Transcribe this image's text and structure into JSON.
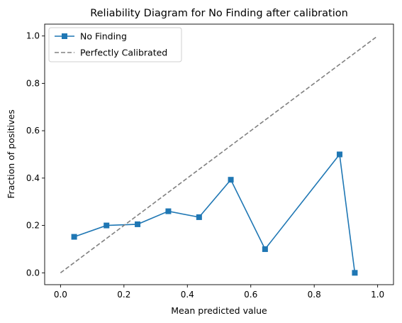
{
  "chart_data": {
    "type": "line",
    "title": "Reliability Diagram for No Finding after calibration",
    "xlabel": "Mean predicted value",
    "ylabel": "Fraction of positives",
    "xlim": [
      -0.05,
      1.05
    ],
    "ylim": [
      -0.05,
      1.05
    ],
    "xticks": [
      0.0,
      0.2,
      0.4,
      0.6,
      0.8,
      1.0
    ],
    "yticks": [
      0.0,
      0.2,
      0.4,
      0.6,
      0.8,
      1.0
    ],
    "xtick_labels": [
      "0.0",
      "0.2",
      "0.4",
      "0.6",
      "0.8",
      "1.0"
    ],
    "ytick_labels": [
      "0.0",
      "0.2",
      "0.4",
      "0.6",
      "0.8",
      "1.0"
    ],
    "grid": false,
    "legend_position": "top-left",
    "series": [
      {
        "name": "No Finding",
        "color": "#1f77b4",
        "linestyle": "solid",
        "marker": "square",
        "x": [
          0.043,
          0.145,
          0.243,
          0.34,
          0.437,
          0.537,
          0.645,
          0.88,
          0.928
        ],
        "y": [
          0.152,
          0.2,
          0.205,
          0.26,
          0.235,
          0.393,
          0.1,
          0.5,
          0.0
        ]
      },
      {
        "name": "Perfectly Calibrated",
        "color": "#808080",
        "linestyle": "dashed",
        "marker": "none",
        "x": [
          0.0,
          1.0
        ],
        "y": [
          0.0,
          1.0
        ]
      }
    ]
  }
}
